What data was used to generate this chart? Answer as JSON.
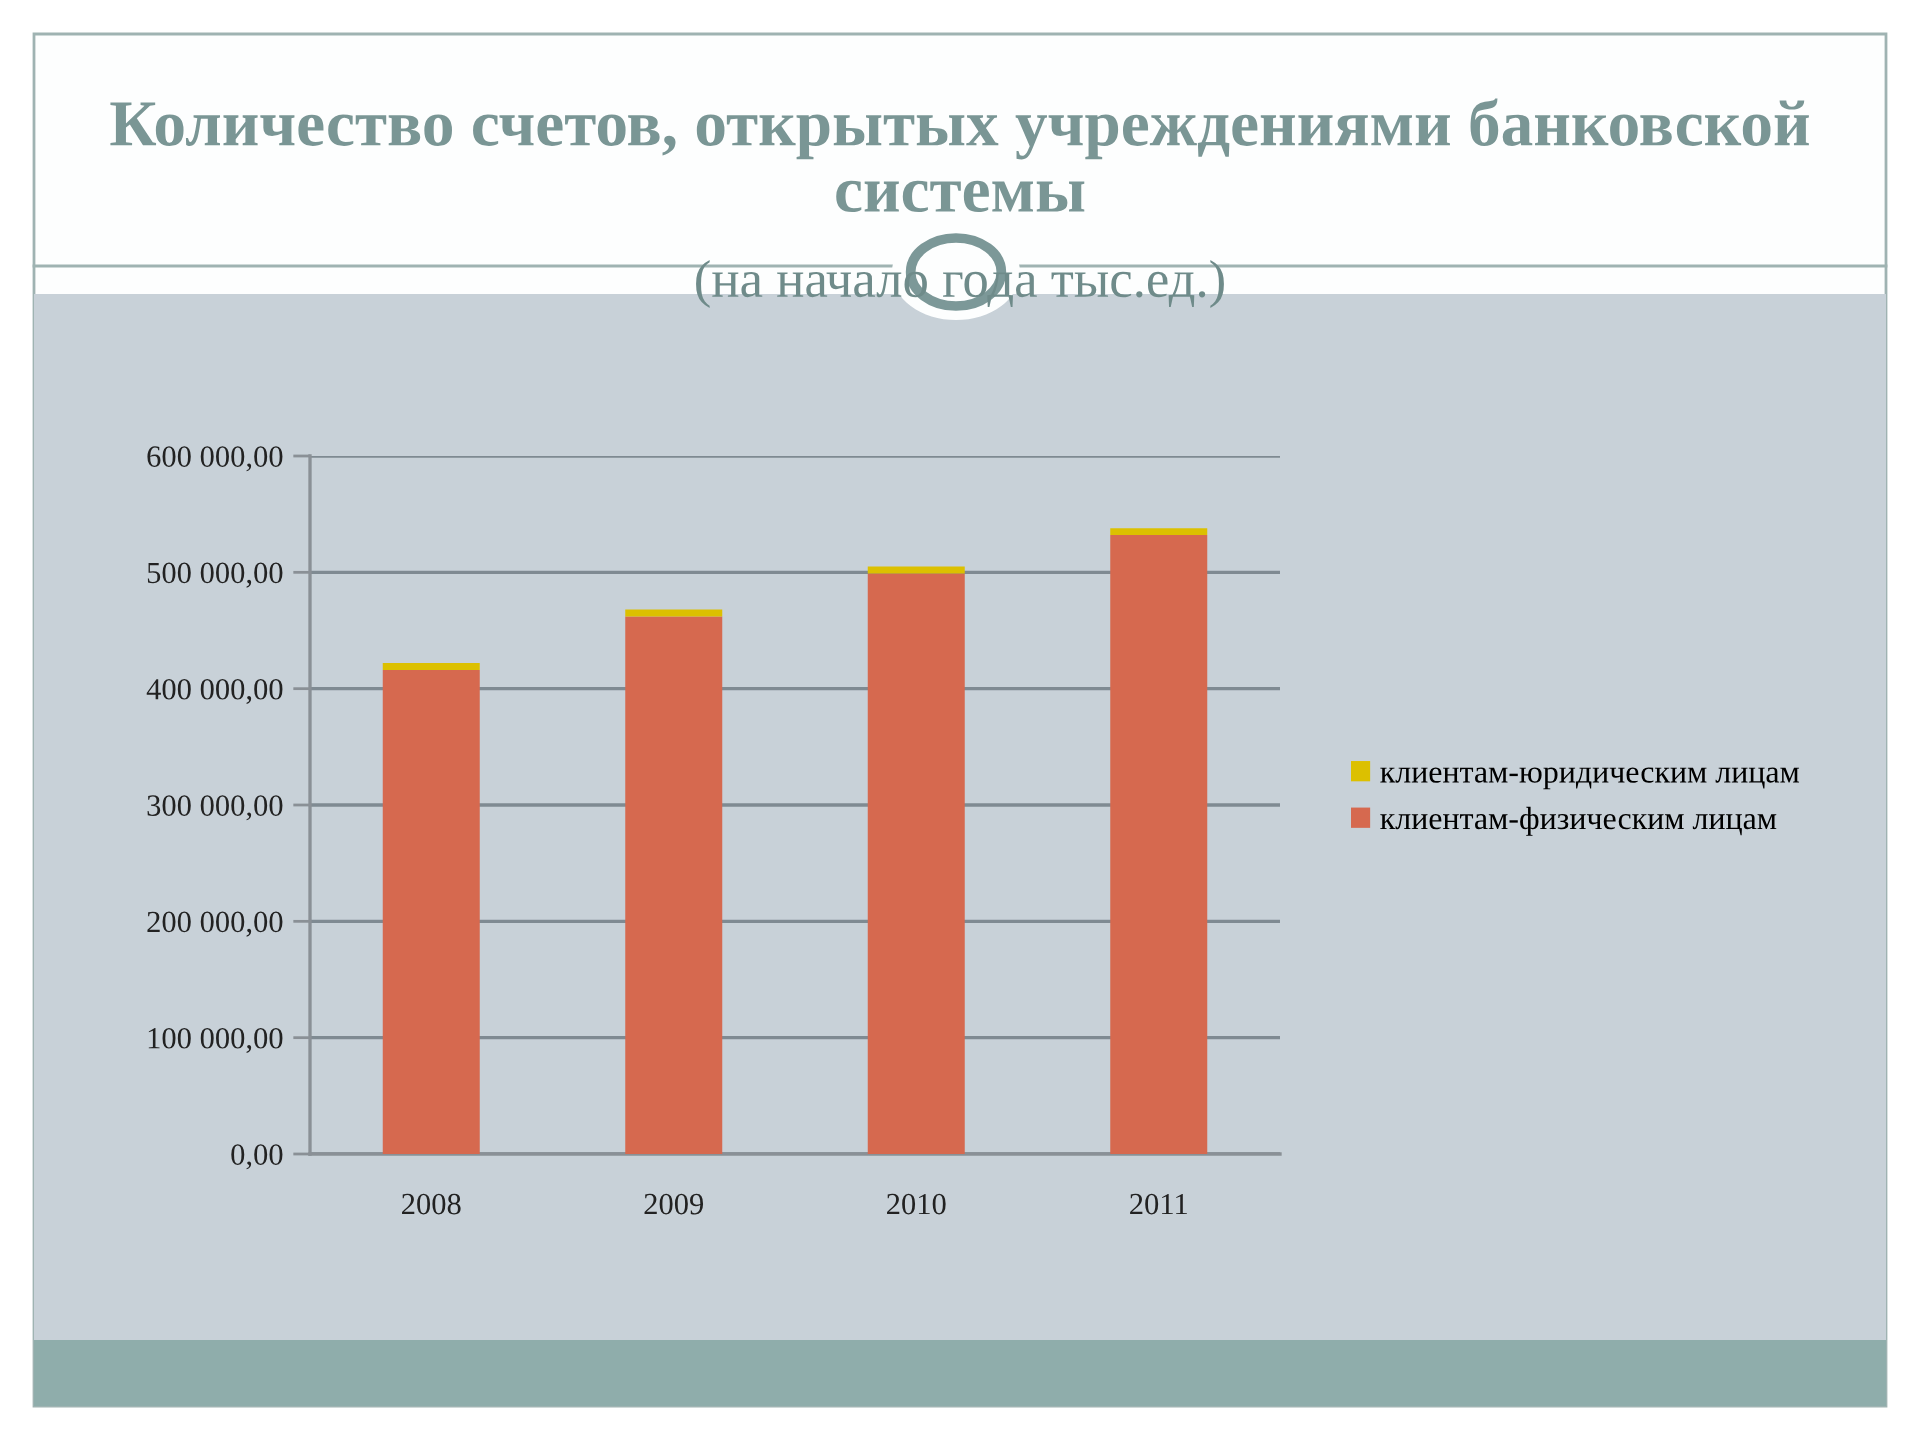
{
  "chart_data": {
    "type": "bar",
    "title": "Количество счетов, открытых учреждениями банковской системы",
    "subtitle": "(на начало года тыс.ед.)",
    "categories": [
      "2008",
      "2009",
      "2010",
      "2011"
    ],
    "stacked": true,
    "series": [
      {
        "name": "клиентам-физическим лицам",
        "color": "#d6694f",
        "values": [
          416000,
          462000,
          499000,
          532000
        ]
      },
      {
        "name": "клиентам-юридическим лицам",
        "color": "#dcc000",
        "values": [
          6000,
          6000,
          6000,
          6000
        ]
      }
    ],
    "ylim": [
      0,
      600000
    ],
    "yticks": [
      {
        "value": 0,
        "label": "0,00"
      },
      {
        "value": 100000,
        "label": "100 000,00"
      },
      {
        "value": 200000,
        "label": "200 000,00"
      },
      {
        "value": 300000,
        "label": "300 000,00"
      },
      {
        "value": 400000,
        "label": "400 000,00"
      },
      {
        "value": 500000,
        "label": "500 000,00"
      },
      {
        "value": 600000,
        "label": "600 000,00"
      }
    ],
    "grid": "y",
    "legend": "right"
  }
}
